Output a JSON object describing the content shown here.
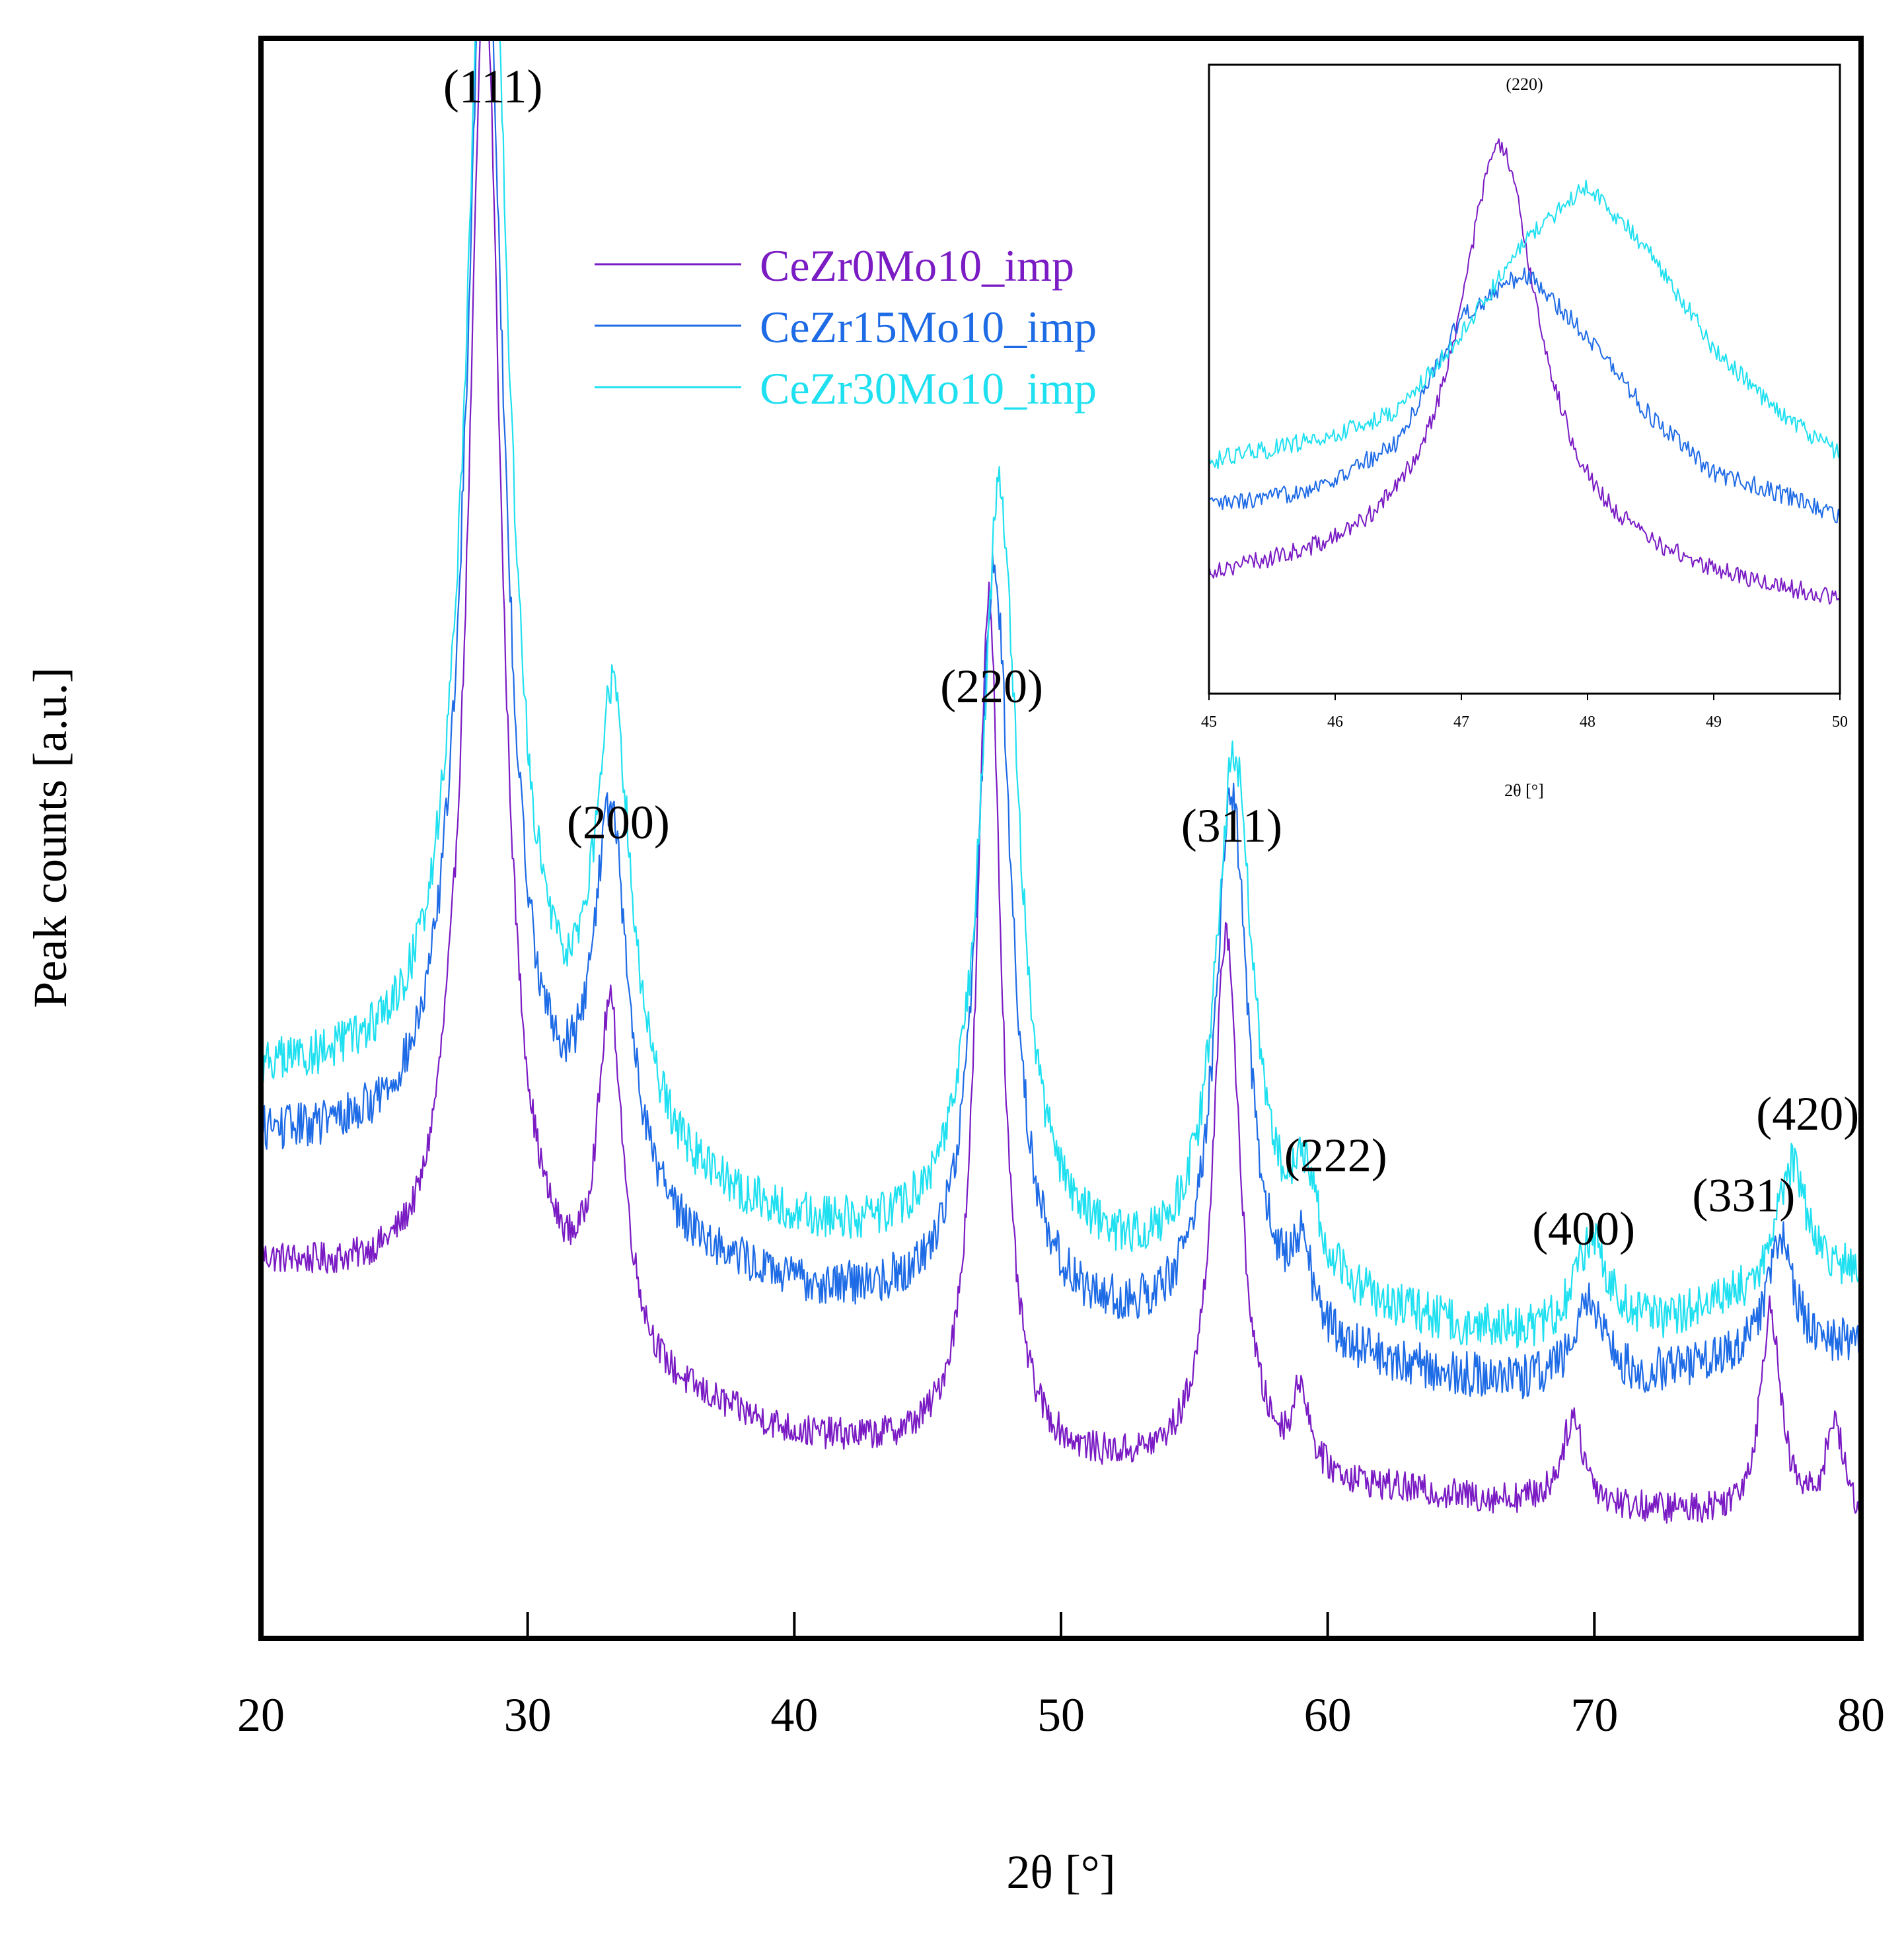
{
  "chart_data": [
    {
      "type": "line",
      "title": "",
      "xlabel": "2θ [°]",
      "ylabel": "Peak counts [a.u.]",
      "xlim": [
        20,
        80
      ],
      "ylim": [
        0,
        1000
      ],
      "xticks": [
        20,
        30,
        40,
        50,
        60,
        70,
        80
      ],
      "yticks": [],
      "grid": false,
      "legend_position": "top-center",
      "series": [
        {
          "name": "CeZr0Mo10_imp",
          "color": "#7a1bc4",
          "baseline": [
            [
              20,
              232
            ],
            [
              26,
              212
            ],
            [
              27,
              230
            ],
            [
              35,
              148
            ],
            [
              40,
              122
            ],
            [
              45,
              112
            ],
            [
              50,
              104
            ],
            [
              55,
              101
            ],
            [
              60,
              94
            ],
            [
              65,
              86
            ],
            [
              70,
              80
            ],
            [
              75,
              76
            ],
            [
              80,
              72
            ]
          ],
          "peaks": [
            [
              28.4,
              820,
              0.75
            ],
            [
              33.1,
              210,
              0.6
            ],
            [
              47.3,
              540,
              0.55
            ],
            [
              56.2,
              340,
              0.6
            ],
            [
              59.0,
              50,
              0.35
            ],
            [
              69.2,
              55,
              0.5
            ],
            [
              76.6,
              130,
              0.45
            ],
            [
              79.0,
              60,
              0.4
            ]
          ],
          "noise": 10
        },
        {
          "name": "CeZr15Mo10_imp",
          "color": "#1e6be6",
          "baseline": [
            [
              20,
              310
            ],
            [
              26,
              300
            ],
            [
              27,
              310
            ],
            [
              35,
              238
            ],
            [
              40,
              212
            ],
            [
              45,
              202
            ],
            [
              50,
              192
            ],
            [
              55,
              186
            ],
            [
              60,
              172
            ],
            [
              65,
              160
            ],
            [
              70,
              150
            ],
            [
              75,
              172
            ],
            [
              80,
              182
            ]
          ],
          "peaks": [
            [
              28.4,
              790,
              0.85
            ],
            [
              33.1,
              240,
              0.8
            ],
            [
              47.5,
              470,
              0.75
            ],
            [
              56.4,
              340,
              0.75
            ],
            [
              59.0,
              50,
              0.5
            ],
            [
              69.8,
              60,
              0.75
            ],
            [
              77.0,
              70,
              0.6
            ]
          ],
          "noise": 14
        },
        {
          "name": "CeZr30Mo10_imp",
          "color": "#1fe0f0",
          "baseline": [
            [
              20,
              350
            ],
            [
              26,
              345
            ],
            [
              27,
              350
            ],
            [
              35,
              278
            ],
            [
              40,
              250
            ],
            [
              45,
              240
            ],
            [
              50,
              228
            ],
            [
              55,
              220
            ],
            [
              60,
              206
            ],
            [
              65,
              190
            ],
            [
              70,
              180
            ],
            [
              75,
              205
            ],
            [
              80,
              225
            ]
          ],
          "peaks": [
            [
              28.5,
              830,
              0.9
            ],
            [
              33.2,
              270,
              0.85
            ],
            [
              47.7,
              480,
              0.85
            ],
            [
              56.5,
              330,
              0.85
            ],
            [
              59.1,
              60,
              0.6
            ],
            [
              69.9,
              65,
              0.8
            ],
            [
              77.4,
              80,
              0.7
            ]
          ],
          "noise": 14
        }
      ],
      "annotations": [
        {
          "text": "(111)",
          "x": 28.7,
          "y": 960
        },
        {
          "text": "(200)",
          "x": 33.4,
          "y": 500
        },
        {
          "text": "(220)",
          "x": 47.4,
          "y": 585
        },
        {
          "text": "(311)",
          "x": 56.4,
          "y": 498
        },
        {
          "text": "(222)",
          "x": 60.3,
          "y": 292
        },
        {
          "text": "(400)",
          "x": 69.6,
          "y": 246
        },
        {
          "text": "(331)",
          "x": 75.6,
          "y": 267
        },
        {
          "text": "(420)",
          "x": 78.0,
          "y": 318
        }
      ]
    },
    {
      "type": "line",
      "title": "",
      "xlabel": "2θ [°]",
      "ylabel": "",
      "xlim": [
        45,
        50
      ],
      "ylim": [
        0,
        100
      ],
      "xticks": [
        45,
        46,
        47,
        48,
        49,
        50
      ],
      "yticks": [],
      "grid": false,
      "legend_position": "none",
      "series": [
        {
          "name": "CeZr0Mo10_imp",
          "color": "#7a1bc4",
          "baseline": [
            [
              45,
              18
            ],
            [
              46,
              20
            ],
            [
              46.5,
              22
            ],
            [
              47.3,
              25
            ],
            [
              48,
              21
            ],
            [
              49,
              17
            ],
            [
              50,
              14
            ]
          ],
          "peaks": [
            [
              47.3,
              62,
              0.38
            ]
          ],
          "noise": 1.5
        },
        {
          "name": "CeZr15Mo10_imp",
          "color": "#1e6be6",
          "baseline": [
            [
              45,
              30
            ],
            [
              45.5,
              31
            ],
            [
              46,
              34
            ],
            [
              46.5,
              40
            ],
            [
              47,
              60
            ],
            [
              47.5,
              67
            ],
            [
              48,
              57
            ],
            [
              48.5,
              44
            ],
            [
              49,
              35
            ],
            [
              49.5,
              32
            ],
            [
              50,
              28
            ]
          ],
          "peaks": [],
          "noise": 1.5
        },
        {
          "name": "CeZr30Mo10_imp",
          "color": "#1fe0f0",
          "baseline": [
            [
              45,
              37
            ],
            [
              45.5,
              39
            ],
            [
              46,
              41
            ],
            [
              46.5,
              45
            ],
            [
              47,
              57
            ],
            [
              47.5,
              72
            ],
            [
              48,
              81
            ],
            [
              48.5,
              70
            ],
            [
              49,
              55
            ],
            [
              49.5,
              45
            ],
            [
              50,
              38
            ]
          ],
          "peaks": [],
          "noise": 1.5
        }
      ],
      "annotations": [
        {
          "text": "(220)",
          "x": 47.5,
          "y": 96
        }
      ]
    }
  ]
}
